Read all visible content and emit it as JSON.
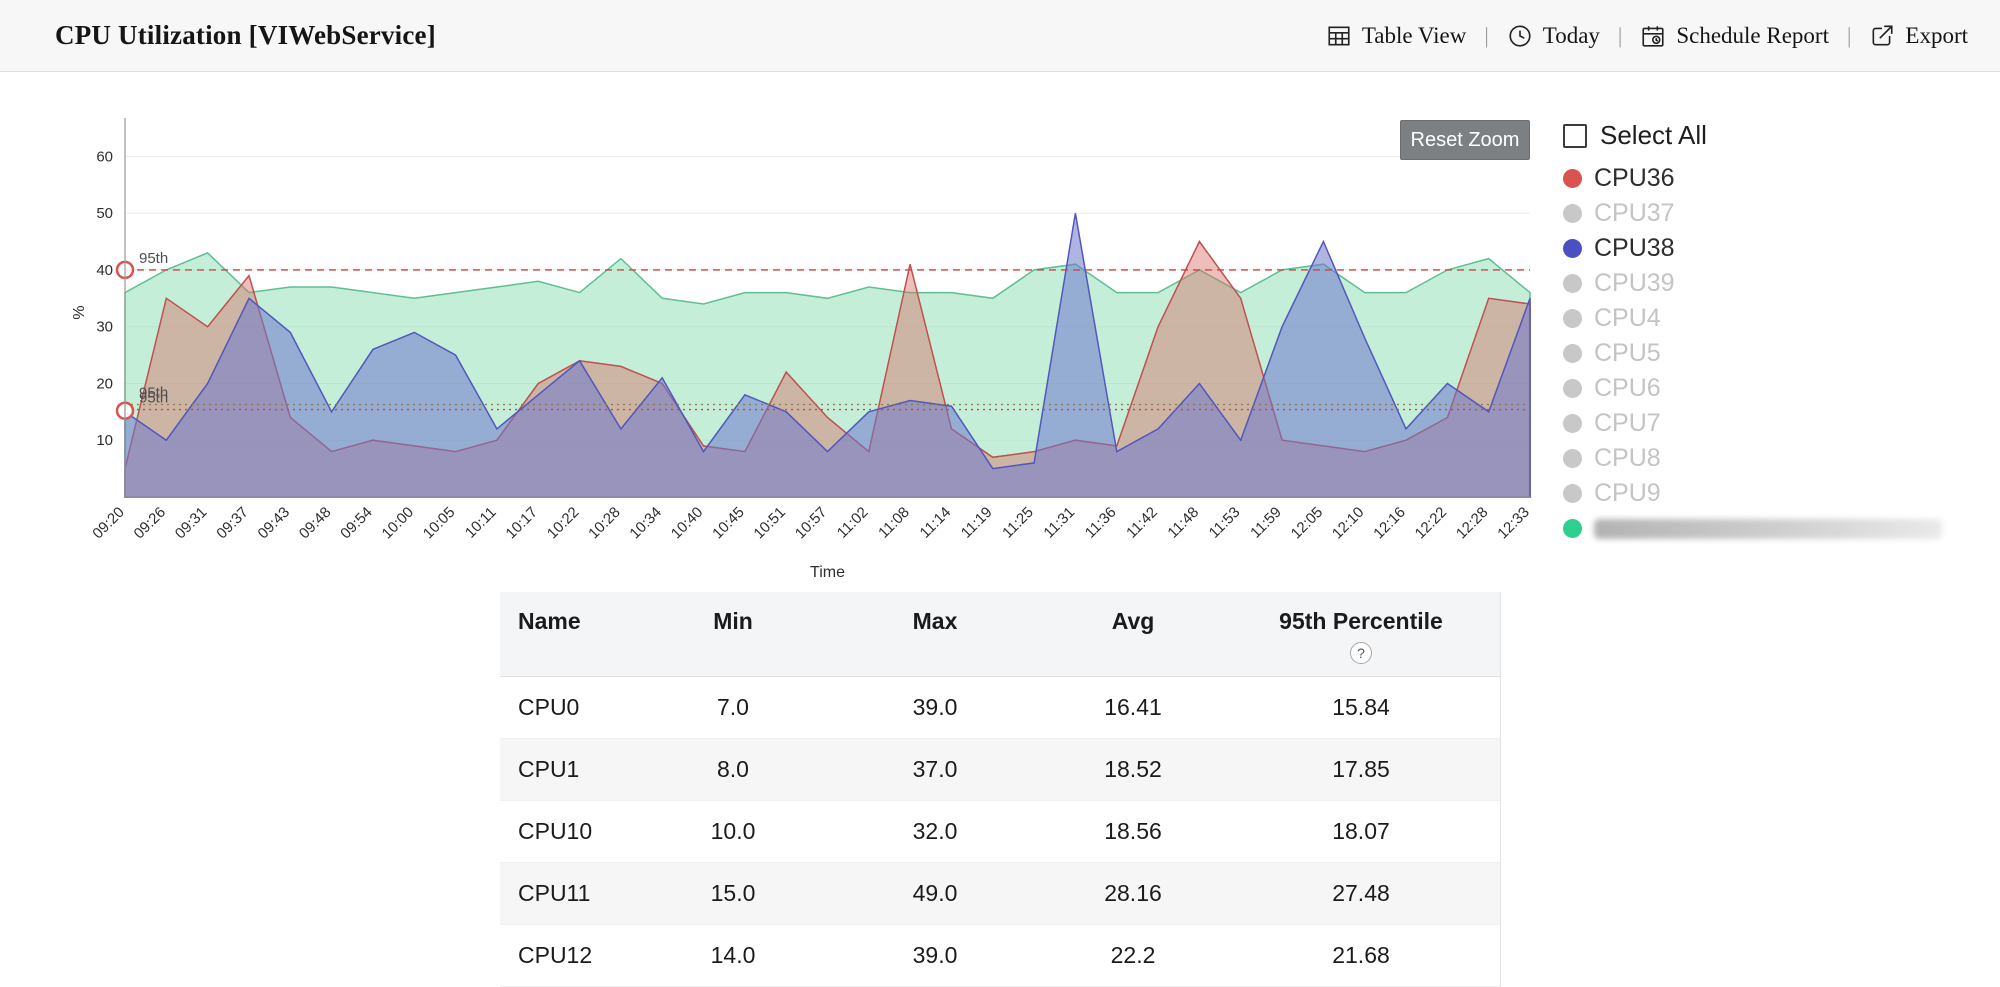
{
  "header": {
    "title": "CPU Utilization [VIWebService]",
    "actions": [
      {
        "label": "Table View",
        "icon": "table-icon"
      },
      {
        "label": "Today",
        "icon": "clock-icon"
      },
      {
        "label": "Schedule Report",
        "icon": "calendar-icon"
      },
      {
        "label": "Export",
        "icon": "export-icon"
      }
    ]
  },
  "chart": {
    "reset_zoom_label": "Reset Zoom"
  },
  "chart_data": {
    "type": "area",
    "title": "",
    "xlabel": "Time",
    "ylabel": "%",
    "y_ticks": [
      10,
      20,
      30,
      40,
      50,
      60
    ],
    "ylim": [
      0,
      65
    ],
    "legend_position": "right",
    "x": [
      "09:20",
      "09:26",
      "09:31",
      "09:37",
      "09:43",
      "09:48",
      "09:54",
      "10:00",
      "10:05",
      "10:11",
      "10:17",
      "10:22",
      "10:28",
      "10:34",
      "10:40",
      "10:45",
      "10:51",
      "10:57",
      "11:02",
      "11:08",
      "11:14",
      "11:19",
      "11:25",
      "11:31",
      "11:36",
      "11:42",
      "11:48",
      "11:53",
      "11:59",
      "12:05",
      "12:10",
      "12:16",
      "12:22",
      "12:28",
      "12:33"
    ],
    "series": [
      {
        "name": "",
        "redacted": true,
        "line_color": "#5fbf93",
        "fill_color": "rgba(150,224,186,0.55)",
        "values": [
          36,
          40,
          43,
          36,
          37,
          37,
          36,
          35,
          36,
          37,
          38,
          36,
          42,
          35,
          34,
          36,
          36,
          35,
          37,
          36,
          36,
          35,
          40,
          41,
          36,
          36,
          40,
          36,
          40,
          41,
          36,
          36,
          40,
          42,
          36
        ]
      },
      {
        "name": "CPU36",
        "redacted": false,
        "line_color": "#c0504d",
        "fill_color": "rgba(214,110,104,0.45)",
        "values": [
          5,
          35,
          30,
          39,
          14,
          8,
          10,
          9,
          8,
          10,
          20,
          24,
          23,
          20,
          9,
          8,
          22,
          14,
          8,
          41,
          12,
          7,
          8,
          10,
          9,
          30,
          45,
          35,
          10,
          9,
          8,
          10,
          14,
          35,
          34
        ]
      },
      {
        "name": "CPU38",
        "redacted": false,
        "line_color": "#5157bd",
        "fill_color": "rgba(110,120,204,0.55)",
        "values": [
          15,
          10,
          20,
          35,
          29,
          15,
          26,
          29,
          25,
          12,
          18,
          24,
          12,
          21,
          8,
          18,
          15,
          8,
          15,
          17,
          16,
          5,
          6,
          50,
          8,
          12,
          20,
          10,
          30,
          45,
          28,
          12,
          20,
          15,
          35
        ]
      }
    ],
    "threshold_lines": [
      {
        "label": "95th",
        "value": 40,
        "color": "#cc4444",
        "dash": "7 5"
      },
      {
        "label": "95th",
        "value": 16.3,
        "color": "#8a7a4a",
        "dash": "2 4"
      },
      {
        "label": "95th",
        "value": 15.4,
        "color": "#cc4444",
        "dash": "2 4"
      }
    ],
    "axis_markers": [
      {
        "value": 40
      },
      {
        "value": 15.2
      }
    ]
  },
  "legend": {
    "select_all_label": "Select All",
    "items": [
      {
        "label": "CPU36",
        "color": "#d9534f",
        "active": true,
        "redacted": false
      },
      {
        "label": "CPU37",
        "color": "#c8c8c8",
        "active": false,
        "redacted": false
      },
      {
        "label": "CPU38",
        "color": "#4a50c2",
        "active": true,
        "redacted": false
      },
      {
        "label": "CPU39",
        "color": "#c8c8c8",
        "active": false,
        "redacted": false
      },
      {
        "label": "CPU4",
        "color": "#c8c8c8",
        "active": false,
        "redacted": false
      },
      {
        "label": "CPU5",
        "color": "#c8c8c8",
        "active": false,
        "redacted": false
      },
      {
        "label": "CPU6",
        "color": "#c8c8c8",
        "active": false,
        "redacted": false
      },
      {
        "label": "CPU7",
        "color": "#c8c8c8",
        "active": false,
        "redacted": false
      },
      {
        "label": "CPU8",
        "color": "#c8c8c8",
        "active": false,
        "redacted": false
      },
      {
        "label": "CPU9",
        "color": "#c8c8c8",
        "active": false,
        "redacted": false
      },
      {
        "label": "",
        "color": "#2fcf8f",
        "active": true,
        "redacted": true
      }
    ]
  },
  "table": {
    "columns": [
      "Name",
      "Min",
      "Max",
      "Avg",
      "95th Percentile"
    ],
    "col_widths": [
      "14%",
      "18.6%",
      "21.8%",
      "17.8%",
      "27.8%"
    ],
    "help_badge": "?",
    "rows": [
      [
        "CPU0",
        "7.0",
        "39.0",
        "16.41",
        "15.84"
      ],
      [
        "CPU1",
        "8.0",
        "37.0",
        "18.52",
        "17.85"
      ],
      [
        "CPU10",
        "10.0",
        "32.0",
        "18.56",
        "18.07"
      ],
      [
        "CPU11",
        "15.0",
        "49.0",
        "28.16",
        "27.48"
      ],
      [
        "CPU12",
        "14.0",
        "39.0",
        "22.2",
        "21.68"
      ]
    ]
  }
}
